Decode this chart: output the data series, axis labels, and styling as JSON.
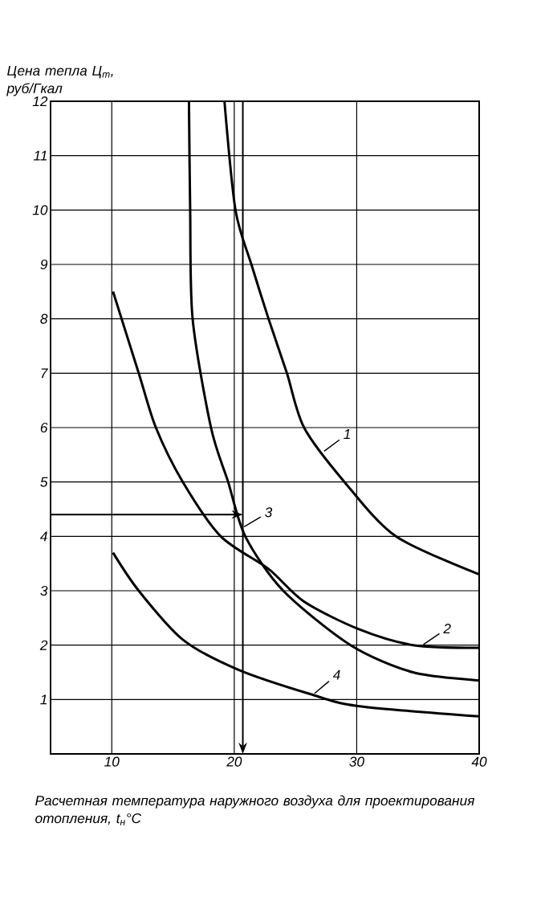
{
  "chart_data": {
    "type": "line",
    "ylabel": "Цена тепла Ц$_{т}$, руб/Гкал",
    "xlabel": "Расчетная температура наружного воздуха для проектирования отопления, t$_{н}$°C",
    "xlim": [
      5,
      40
    ],
    "ylim": [
      0,
      12
    ],
    "xticks": [
      10,
      20,
      30,
      40
    ],
    "yticks": [
      1,
      2,
      3,
      4,
      5,
      6,
      7,
      8,
      9,
      10,
      11,
      12
    ],
    "grid": true,
    "marker": "none",
    "line_style": "solid",
    "series": [
      {
        "name": "1",
        "color": "#000000",
        "x": [
          19.2,
          20.1,
          21.4,
          22.8,
          24.3,
          25.7,
          29.0,
          33.2,
          40
        ],
        "values": [
          12,
          10.0,
          9.0,
          8.0,
          7.0,
          6.0,
          5.0,
          4.0,
          3.3
        ]
      },
      {
        "name": "2",
        "color": "#000000",
        "x": [
          10.1,
          12.2,
          13.6,
          15.8,
          18.9,
          22.8,
          25.7,
          30.1,
          34.6,
          40
        ],
        "values": [
          8.5,
          7.0,
          6.0,
          5.0,
          4.0,
          3.4,
          2.8,
          2.3,
          2.0,
          1.95
        ]
      },
      {
        "name": "3",
        "color": "#000000",
        "x": [
          16.3,
          16.4,
          16.6,
          18.1,
          19.5,
          20.9,
          24.0,
          29.5,
          34.6,
          40
        ],
        "values": [
          12,
          10.0,
          8.0,
          6.0,
          5.0,
          4.0,
          3.0,
          2.0,
          1.5,
          1.35
        ]
      },
      {
        "name": "4",
        "color": "#000000",
        "x": [
          10.1,
          12.2,
          15.8,
          20.3,
          26.2,
          30.1,
          40
        ],
        "values": [
          3.7,
          3.0,
          2.1,
          1.55,
          1.1,
          0.88,
          0.69
        ]
      }
    ],
    "ref_lines": [
      {
        "axis": "x",
        "value": 20.7,
        "color": "#000000"
      },
      {
        "axis": "y",
        "value": 4.4,
        "color": "#000000"
      }
    ]
  }
}
